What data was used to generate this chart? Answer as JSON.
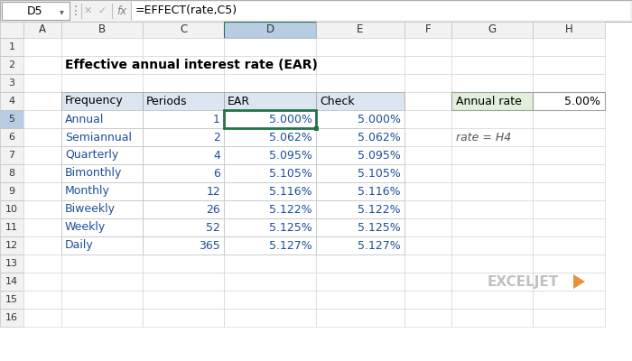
{
  "title": "Effective annual interest rate (EAR)",
  "formula_bar_cell": "D5",
  "formula_bar_formula": "=EFFECT(rate,C5)",
  "col_names": [
    "A",
    "B",
    "C",
    "D",
    "E",
    "F",
    "G",
    "H"
  ],
  "table_headers": [
    "Frequency",
    "Periods",
    "EAR",
    "Check"
  ],
  "table_data": [
    [
      "Annual",
      "1",
      "5.000%",
      "5.000%"
    ],
    [
      "Semiannual",
      "2",
      "5.062%",
      "5.062%"
    ],
    [
      "Quarterly",
      "4",
      "5.095%",
      "5.095%"
    ],
    [
      "Bimonthly",
      "6",
      "5.105%",
      "5.105%"
    ],
    [
      "Monthly",
      "12",
      "5.116%",
      "5.116%"
    ],
    [
      "Biweekly",
      "26",
      "5.122%",
      "5.122%"
    ],
    [
      "Weekly",
      "52",
      "5.125%",
      "5.125%"
    ],
    [
      "Daily",
      "365",
      "5.127%",
      "5.127%"
    ]
  ],
  "annual_rate_label": "Annual rate",
  "annual_rate_value": "5.00%",
  "note_text": "rate = H4",
  "bg_color": "#ffffff",
  "table_header_bg": "#dce6f1",
  "selected_cell_color": "#217346",
  "annual_rate_header_bg": "#e2efda",
  "col_selected_bg": "#b8cce4",
  "row_selected_bg": "#b8cce4",
  "col_header_bg": "#f2f2f2",
  "row_header_bg": "#f2f2f2",
  "cell_border": "#d0d0d0",
  "header_border": "#a0a0a0",
  "data_text_color": "#1f4e9a",
  "normal_text_color": "#000000",
  "exceljet_text_color": "#c0c0c0",
  "exceljet_arrow_color": "#e8903a",
  "note_color": "#555555",
  "formula_bar_bg": "#f2f2f2",
  "formula_input_bg": "#ffffff"
}
